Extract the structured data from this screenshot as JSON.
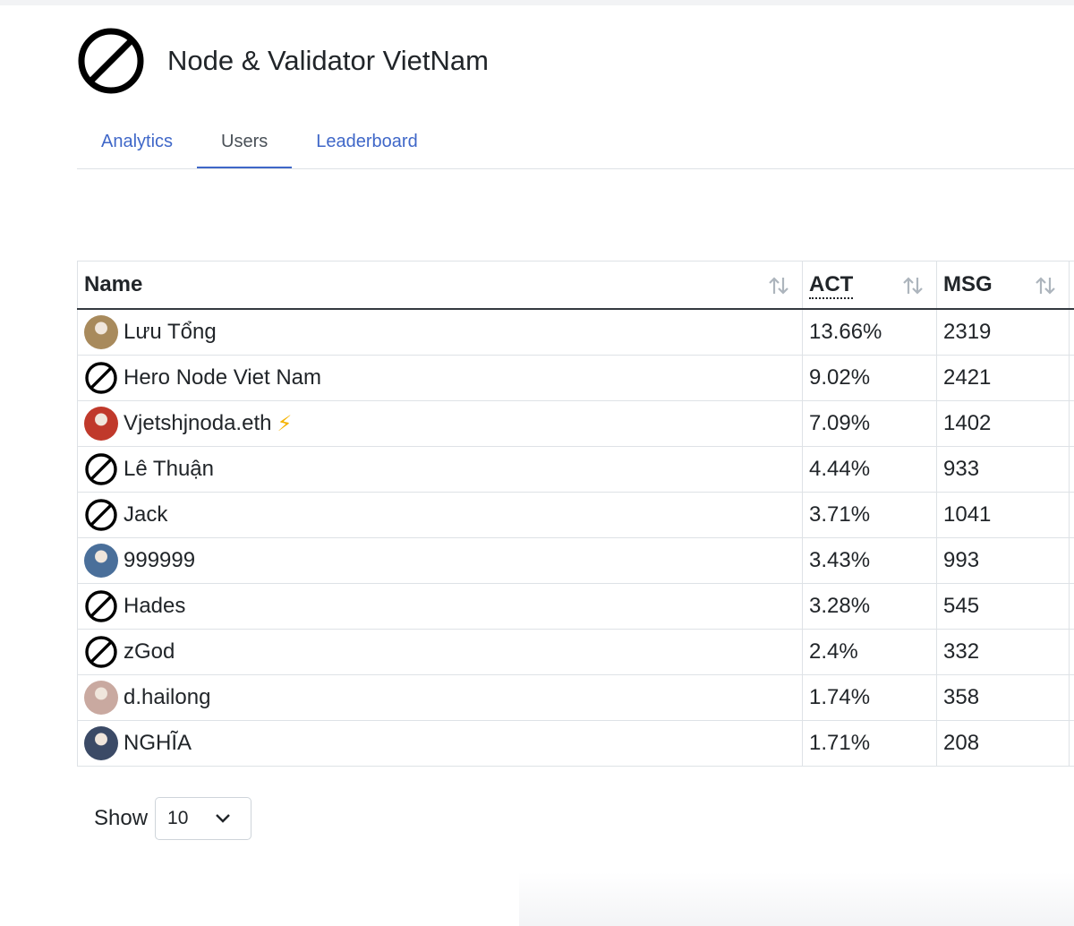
{
  "header": {
    "title": "Node & Validator VietNam",
    "logo_icon": "no-entry-icon"
  },
  "tabs": [
    {
      "label": "Analytics",
      "active": false
    },
    {
      "label": "Users",
      "active": true
    },
    {
      "label": "Leaderboard",
      "active": false
    }
  ],
  "table": {
    "columns": [
      {
        "label": "Name"
      },
      {
        "label": "ACT"
      },
      {
        "label": "MSG"
      }
    ],
    "rows": [
      {
        "name": "Lưu Tổng",
        "act": "13.66%",
        "msg": "2319",
        "avatar": "photo-avatar",
        "avatar_color": "#a88a5c"
      },
      {
        "name": "Hero Node Viet Nam",
        "act": "9.02%",
        "msg": "2421",
        "avatar": "no-entry-icon"
      },
      {
        "name": "Vjetshjnoda.eth",
        "act": "7.09%",
        "msg": "1402",
        "avatar": "cartoon-avatar",
        "avatar_color": "#c0392b",
        "badge": "⚡"
      },
      {
        "name": "Lê Thuận",
        "act": "4.44%",
        "msg": "933",
        "avatar": "no-entry-icon"
      },
      {
        "name": "Jack",
        "act": "3.71%",
        "msg": "1041",
        "avatar": "no-entry-icon"
      },
      {
        "name": "999999",
        "act": "3.43%",
        "msg": "993",
        "avatar": "photo-avatar",
        "avatar_color": "#4a6f9a"
      },
      {
        "name": "Hades",
        "act": "3.28%",
        "msg": "545",
        "avatar": "no-entry-icon"
      },
      {
        "name": "zGod",
        "act": "2.4%",
        "msg": "332",
        "avatar": "no-entry-icon"
      },
      {
        "name": "d.hailong",
        "act": "1.74%",
        "msg": "358",
        "avatar": "photo-avatar",
        "avatar_color": "#c9a9a0"
      },
      {
        "name": "NGHĨA",
        "act": "1.71%",
        "msg": "208",
        "avatar": "photo-avatar",
        "avatar_color": "#3b4a66"
      }
    ]
  },
  "pager": {
    "show_label": "Show",
    "page_size": "10"
  },
  "colors": {
    "accent": "#3f67c8",
    "border": "#dee2e6",
    "header_rule": "#343a40"
  }
}
